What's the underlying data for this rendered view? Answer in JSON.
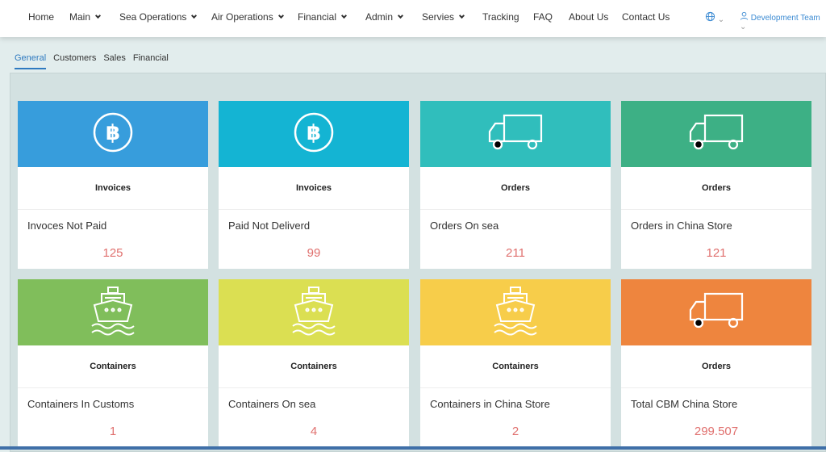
{
  "nav": {
    "items": [
      {
        "label": "Home",
        "dropdown": false
      },
      {
        "label": "Main",
        "dropdown": true
      },
      {
        "label": "Sea Operations",
        "dropdown": true
      },
      {
        "label": "Air Operations",
        "dropdown": true
      },
      {
        "label": "Financial",
        "dropdown": true
      },
      {
        "label": "Admin",
        "dropdown": true
      },
      {
        "label": "Servies",
        "dropdown": true
      },
      {
        "label": "Tracking",
        "dropdown": false
      },
      {
        "label": "FAQ",
        "dropdown": false
      },
      {
        "label": "About Us",
        "dropdown": false
      },
      {
        "label": "Contact Us",
        "dropdown": false
      }
    ],
    "language_icon": "globe-icon",
    "user": "Development Team"
  },
  "tabs": [
    {
      "label": "General",
      "active": true
    },
    {
      "label": "Customers"
    },
    {
      "label": "Sales"
    },
    {
      "label": "Financial"
    }
  ],
  "cards": [
    {
      "color": "#379ddc",
      "icon": "baht-icon",
      "title": "Invoices",
      "label": "Invoces Not Paid",
      "value": "125"
    },
    {
      "color": "#14b4d3",
      "icon": "baht-icon",
      "title": "Invoices",
      "label": "Paid Not Deliverd",
      "value": "99"
    },
    {
      "color": "#30bebc",
      "icon": "truck-icon",
      "title": "Orders",
      "label": "Orders On sea",
      "value": "211"
    },
    {
      "color": "#3db085",
      "icon": "truck-icon",
      "title": "Orders",
      "label": "Orders in China Store",
      "value": "121"
    },
    {
      "color": "#80be5b",
      "icon": "ship-icon",
      "title": "Containers",
      "label": "Containers In Customs",
      "value": "1"
    },
    {
      "color": "#dbdf52",
      "icon": "ship-icon",
      "title": "Containers",
      "label": "Containers On sea",
      "value": "4"
    },
    {
      "color": "#f7cd4a",
      "icon": "ship-icon",
      "title": "Containers",
      "label": "Containers in China Store",
      "value": "2"
    },
    {
      "color": "#ee853e",
      "icon": "truck-icon",
      "title": "Orders",
      "label": "Total CBM China Store",
      "value": "299.507"
    }
  ]
}
